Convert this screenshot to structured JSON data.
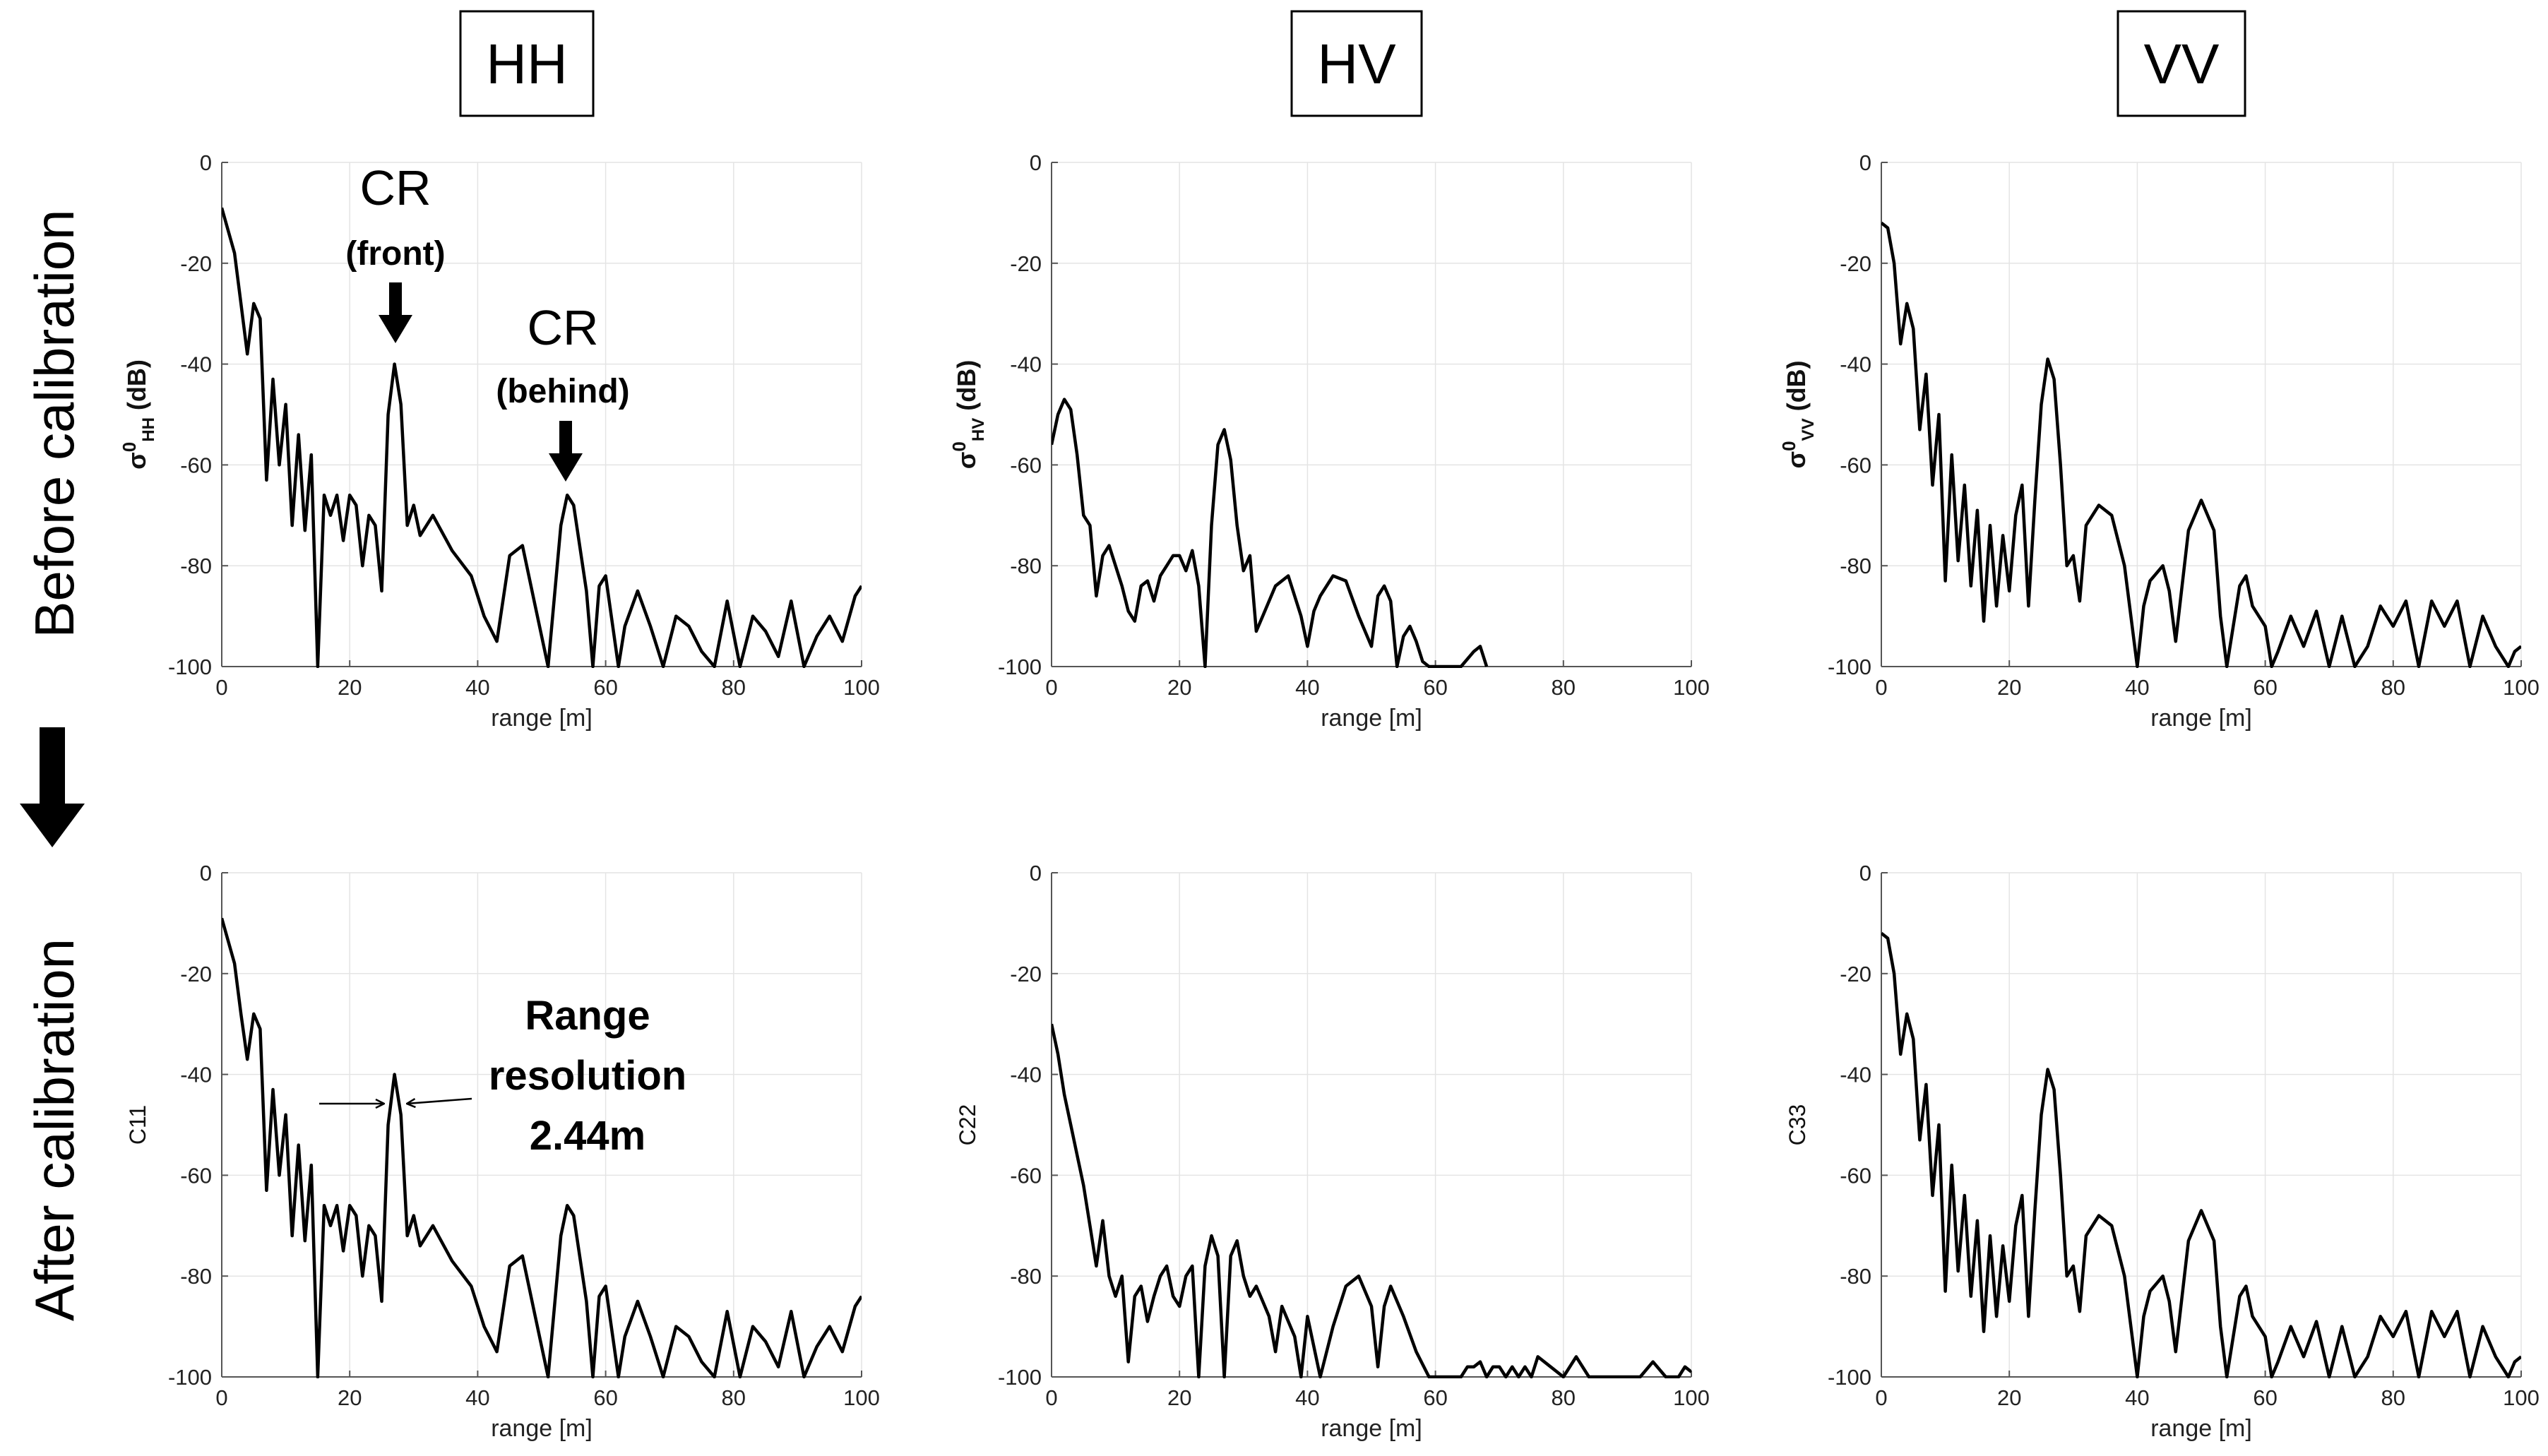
{
  "columns": [
    "HH",
    "HV",
    "VV"
  ],
  "rows": [
    "Before calibration",
    "After calibration"
  ],
  "annotations": {
    "cr": "CR",
    "front": "(front)",
    "behind": "(behind)",
    "range_line1": "Range",
    "range_line2": "resolution",
    "range_line3": "2.44m"
  },
  "colors": {
    "line": "#000000",
    "grid": "#e4e4e4",
    "axis": "#555555"
  },
  "chart_data": [
    {
      "id": "hh-before",
      "type": "line",
      "xlabel": "range [m]",
      "ylabel": "σ0HH (dB)",
      "ylabel_main": "σ",
      "ylabel_sup": "0",
      "ylabel_sub": "HH",
      "ylabel_unit": " (dB)",
      "xlim": [
        0,
        100
      ],
      "ylim": [
        -100,
        0
      ],
      "xticks": [
        0,
        20,
        40,
        60,
        80,
        100
      ],
      "yticks": [
        0,
        -20,
        -40,
        -60,
        -80,
        -100
      ],
      "x": [
        0,
        2,
        3,
        4,
        5,
        6,
        7,
        8,
        9,
        10,
        11,
        12,
        13,
        14,
        15,
        16,
        17,
        18,
        19,
        20,
        21,
        22,
        23,
        24,
        25,
        26,
        27,
        28,
        29,
        30,
        31,
        33,
        36,
        39,
        41,
        43,
        45,
        47,
        49,
        51,
        53,
        54,
        55,
        57,
        58,
        59,
        60,
        62,
        63,
        65,
        67,
        69,
        71,
        73,
        75,
        77,
        79,
        81,
        83,
        85,
        87,
        89,
        91,
        93,
        95,
        97,
        99,
        100
      ],
      "y": [
        -9,
        -18,
        -28,
        -38,
        -28,
        -31,
        -63,
        -43,
        -60,
        -48,
        -72,
        -54,
        -73,
        -58,
        -100,
        -66,
        -70,
        -66,
        -75,
        -66,
        -68,
        -80,
        -70,
        -72,
        -85,
        -50,
        -40,
        -48,
        -72,
        -68,
        -74,
        -70,
        -77,
        -82,
        -90,
        -95,
        -78,
        -76,
        -88,
        -100,
        -72,
        -66,
        -68,
        -85,
        -100,
        -84,
        -82,
        -100,
        -92,
        -85,
        -92,
        -100,
        -90,
        -92,
        -97,
        -100,
        -87,
        -100,
        -90,
        -93,
        -98,
        -87,
        -100,
        -94,
        -90,
        -95,
        -86,
        -84
      ]
    },
    {
      "id": "hv-before",
      "type": "line",
      "xlabel": "range [m]",
      "ylabel": "σ0HV (dB)",
      "ylabel_main": "σ",
      "ylabel_sup": "0",
      "ylabel_sub": "HV",
      "ylabel_unit": " (dB)",
      "xlim": [
        0,
        100
      ],
      "ylim": [
        -100,
        0
      ],
      "xticks": [
        0,
        20,
        40,
        60,
        80,
        100
      ],
      "yticks": [
        0,
        -20,
        -40,
        -60,
        -80,
        -100
      ],
      "x": [
        0,
        1,
        2,
        3,
        4,
        5,
        6,
        7,
        8,
        9,
        10,
        11,
        12,
        13,
        14,
        15,
        16,
        17,
        18,
        19,
        20,
        21,
        22,
        23,
        24,
        25,
        26,
        27,
        28,
        29,
        30,
        31,
        32,
        33,
        35,
        37,
        39,
        40,
        41,
        42,
        44,
        46,
        48,
        50,
        51,
        52,
        53,
        54,
        55,
        56,
        57,
        58,
        59,
        60,
        61,
        62,
        64,
        66,
        67,
        68
      ],
      "y": [
        -56,
        -50,
        -47,
        -49,
        -58,
        -70,
        -72,
        -86,
        -78,
        -76,
        -80,
        -84,
        -89,
        -91,
        -84,
        -83,
        -87,
        -82,
        -80,
        -78,
        -78,
        -81,
        -77,
        -84,
        -100,
        -72,
        -56,
        -53,
        -59,
        -72,
        -81,
        -78,
        -93,
        -90,
        -84,
        -82,
        -90,
        -96,
        -89,
        -86,
        -82,
        -83,
        -90,
        -96,
        -86,
        -84,
        -87,
        -100,
        -94,
        -92,
        -95,
        -99,
        -100,
        -100,
        -100,
        -100,
        -100,
        -97,
        -96,
        -100
      ]
    },
    {
      "id": "vv-before",
      "type": "line",
      "xlabel": "range [m]",
      "ylabel": "σ0VV (dB)",
      "ylabel_main": "σ",
      "ylabel_sup": "0",
      "ylabel_sub": "VV",
      "ylabel_unit": " (dB)",
      "xlim": [
        0,
        100
      ],
      "ylim": [
        -100,
        0
      ],
      "xticks": [
        0,
        20,
        40,
        60,
        80,
        100
      ],
      "yticks": [
        0,
        -20,
        -40,
        -60,
        -80,
        -100
      ],
      "x": [
        0,
        1,
        2,
        3,
        4,
        5,
        6,
        7,
        8,
        9,
        10,
        11,
        12,
        13,
        14,
        15,
        16,
        17,
        18,
        19,
        20,
        21,
        22,
        23,
        24,
        25,
        26,
        27,
        28,
        29,
        30,
        31,
        32,
        34,
        36,
        38,
        40,
        41,
        42,
        44,
        45,
        46,
        48,
        50,
        52,
        53,
        54,
        56,
        57,
        58,
        60,
        61,
        62,
        64,
        66,
        68,
        70,
        72,
        74,
        76,
        78,
        80,
        82,
        84,
        86,
        88,
        90,
        92,
        94,
        96,
        98,
        99,
        100
      ],
      "y": [
        -12,
        -13,
        -20,
        -36,
        -28,
        -33,
        -53,
        -42,
        -64,
        -50,
        -83,
        -58,
        -79,
        -64,
        -84,
        -69,
        -91,
        -72,
        -88,
        -74,
        -85,
        -70,
        -64,
        -88,
        -67,
        -48,
        -39,
        -43,
        -60,
        -80,
        -78,
        -87,
        -72,
        -68,
        -70,
        -80,
        -100,
        -88,
        -83,
        -80,
        -85,
        -95,
        -73,
        -67,
        -73,
        -90,
        -100,
        -84,
        -82,
        -88,
        -92,
        -100,
        -97,
        -90,
        -96,
        -89,
        -100,
        -90,
        -100,
        -96,
        -88,
        -92,
        -87,
        -100,
        -87,
        -92,
        -87,
        -100,
        -90,
        -96,
        -100,
        -97,
        -96
      ]
    },
    {
      "id": "hh-after",
      "type": "line",
      "xlabel": "range [m]",
      "ylabel": "C11",
      "xlim": [
        0,
        100
      ],
      "ylim": [
        -100,
        0
      ],
      "xticks": [
        0,
        20,
        40,
        60,
        80,
        100
      ],
      "yticks": [
        0,
        -20,
        -40,
        -60,
        -80,
        -100
      ],
      "x": [
        0,
        2,
        3,
        4,
        5,
        6,
        7,
        8,
        9,
        10,
        11,
        12,
        13,
        14,
        15,
        16,
        17,
        18,
        19,
        20,
        21,
        22,
        23,
        24,
        25,
        26,
        27,
        28,
        29,
        30,
        31,
        33,
        36,
        39,
        41,
        43,
        45,
        47,
        49,
        51,
        53,
        54,
        55,
        57,
        58,
        59,
        60,
        62,
        63,
        65,
        67,
        69,
        71,
        73,
        75,
        77,
        79,
        81,
        83,
        85,
        87,
        89,
        91,
        93,
        95,
        97,
        99,
        100
      ],
      "y": [
        -9,
        -18,
        -28,
        -37,
        -28,
        -31,
        -63,
        -43,
        -60,
        -48,
        -72,
        -54,
        -73,
        -58,
        -100,
        -66,
        -70,
        -66,
        -75,
        -66,
        -68,
        -80,
        -70,
        -72,
        -85,
        -50,
        -40,
        -48,
        -72,
        -68,
        -74,
        -70,
        -77,
        -82,
        -90,
        -95,
        -78,
        -76,
        -88,
        -100,
        -72,
        -66,
        -68,
        -85,
        -100,
        -84,
        -82,
        -100,
        -92,
        -85,
        -92,
        -100,
        -90,
        -92,
        -97,
        -100,
        -87,
        -100,
        -90,
        -93,
        -98,
        -87,
        -100,
        -94,
        -90,
        -95,
        -86,
        -84
      ]
    },
    {
      "id": "hv-after",
      "type": "line",
      "xlabel": "range [m]",
      "ylabel": "C22",
      "xlim": [
        0,
        100
      ],
      "ylim": [
        -100,
        0
      ],
      "xticks": [
        0,
        20,
        40,
        60,
        80,
        100
      ],
      "yticks": [
        0,
        -20,
        -40,
        -60,
        -80,
        -100
      ],
      "x": [
        0,
        1,
        2,
        3,
        4,
        5,
        6,
        7,
        8,
        9,
        10,
        11,
        12,
        13,
        14,
        15,
        16,
        17,
        18,
        19,
        20,
        21,
        22,
        23,
        24,
        25,
        26,
        27,
        28,
        29,
        30,
        31,
        32,
        33,
        34,
        35,
        36,
        38,
        39,
        40,
        42,
        44,
        46,
        48,
        50,
        51,
        52,
        53,
        55,
        57,
        59,
        60,
        62,
        64,
        65,
        66,
        67,
        68,
        69,
        70,
        71,
        72,
        73,
        74,
        75,
        76,
        78,
        80,
        82,
        84,
        86,
        88,
        90,
        92,
        94,
        96,
        98,
        99,
        100
      ],
      "y": [
        -30,
        -36,
        -44,
        -50,
        -56,
        -62,
        -70,
        -78,
        -69,
        -80,
        -84,
        -80,
        -97,
        -84,
        -82,
        -89,
        -84,
        -80,
        -78,
        -84,
        -86,
        -80,
        -78,
        -100,
        -78,
        -72,
        -76,
        -100,
        -76,
        -73,
        -80,
        -84,
        -82,
        -85,
        -88,
        -95,
        -86,
        -92,
        -100,
        -88,
        -100,
        -90,
        -82,
        -80,
        -86,
        -98,
        -86,
        -82,
        -88,
        -95,
        -100,
        -100,
        -100,
        -100,
        -98,
        -98,
        -97,
        -100,
        -98,
        -98,
        -100,
        -98,
        -100,
        -98,
        -100,
        -96,
        -98,
        -100,
        -96,
        -100,
        -100,
        -100,
        -100,
        -100,
        -97,
        -100,
        -100,
        -98,
        -99
      ]
    },
    {
      "id": "vv-after",
      "type": "line",
      "xlabel": "range [m]",
      "ylabel": "C33",
      "xlim": [
        0,
        100
      ],
      "ylim": [
        -100,
        0
      ],
      "xticks": [
        0,
        20,
        40,
        60,
        80,
        100
      ],
      "yticks": [
        0,
        -20,
        -40,
        -60,
        -80,
        -100
      ],
      "x": [
        0,
        1,
        2,
        3,
        4,
        5,
        6,
        7,
        8,
        9,
        10,
        11,
        12,
        13,
        14,
        15,
        16,
        17,
        18,
        19,
        20,
        21,
        22,
        23,
        24,
        25,
        26,
        27,
        28,
        29,
        30,
        31,
        32,
        34,
        36,
        38,
        40,
        41,
        42,
        44,
        45,
        46,
        48,
        50,
        52,
        53,
        54,
        56,
        57,
        58,
        60,
        61,
        62,
        64,
        66,
        68,
        70,
        72,
        74,
        76,
        78,
        80,
        82,
        84,
        86,
        88,
        90,
        92,
        94,
        96,
        98,
        99,
        100
      ],
      "y": [
        -12,
        -13,
        -20,
        -36,
        -28,
        -33,
        -53,
        -42,
        -64,
        -50,
        -83,
        -58,
        -79,
        -64,
        -84,
        -69,
        -91,
        -72,
        -88,
        -74,
        -85,
        -70,
        -64,
        -88,
        -67,
        -48,
        -39,
        -43,
        -60,
        -80,
        -78,
        -87,
        -72,
        -68,
        -70,
        -80,
        -100,
        -88,
        -83,
        -80,
        -85,
        -95,
        -73,
        -67,
        -73,
        -90,
        -100,
        -84,
        -82,
        -88,
        -92,
        -100,
        -97,
        -90,
        -96,
        -89,
        -100,
        -90,
        -100,
        -96,
        -88,
        -92,
        -87,
        -100,
        -87,
        -92,
        -87,
        -100,
        -90,
        -96,
        -100,
        -97,
        -96
      ]
    }
  ]
}
